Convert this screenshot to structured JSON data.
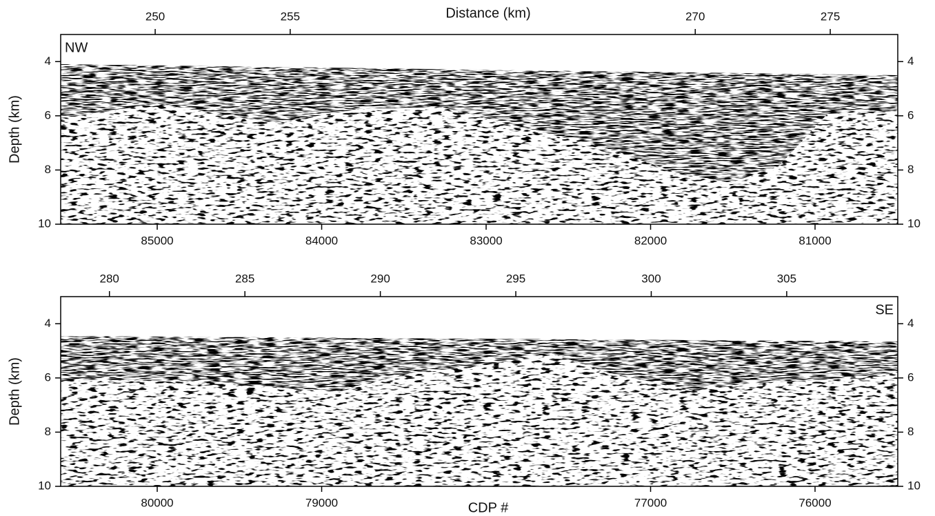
{
  "chart_data": [
    {
      "type": "seismic-section",
      "top_axis_label": "Distance (km)",
      "top_xlim": [
        246.5,
        277.5
      ],
      "top_xticks": [
        250,
        255,
        270,
        275
      ],
      "xlim": [
        85587,
        80497
      ],
      "xticks": [
        85000,
        84000,
        83000,
        82000,
        81000
      ],
      "ylabel": "Depth (km)",
      "ylim": [
        10,
        3
      ],
      "yticks": [
        4,
        6,
        8,
        10
      ],
      "annotation": "NW"
    },
    {
      "type": "seismic-section",
      "xlabel": "CDP #",
      "top_xlim": [
        278.2,
        309.1
      ],
      "top_xticks": [
        280,
        285,
        290,
        295,
        300,
        305
      ],
      "xlim": [
        80587,
        75497
      ],
      "xticks": [
        80000,
        79000,
        77000,
        76000
      ],
      "ylabel": "Depth (km)",
      "ylim": [
        10,
        3
      ],
      "yticks": [
        4,
        6,
        8,
        10
      ],
      "annotation": "SE"
    }
  ]
}
